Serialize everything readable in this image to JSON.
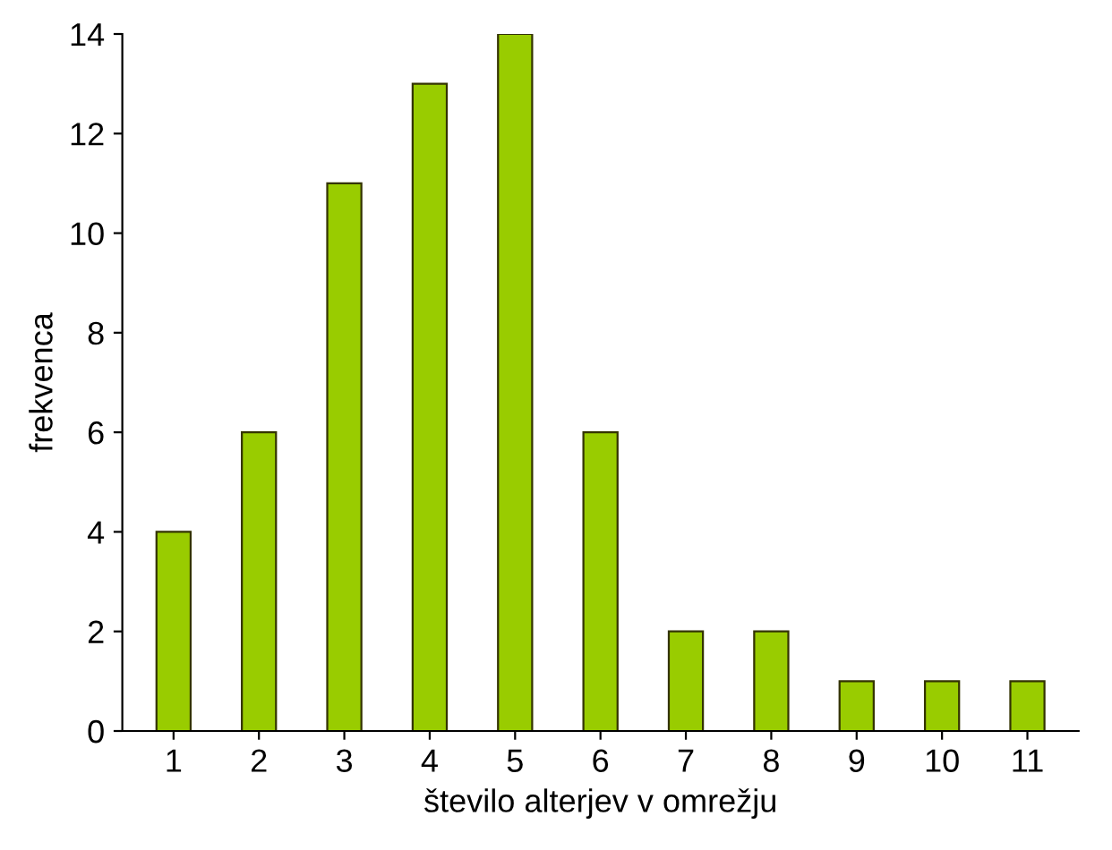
{
  "chart_data": {
    "type": "bar",
    "xlabel": "število alterjev v omrežju",
    "ylabel": "frekvenca",
    "categories": [
      "1",
      "2",
      "3",
      "4",
      "5",
      "6",
      "7",
      "8",
      "9",
      "10",
      "11"
    ],
    "values": [
      4,
      6,
      11,
      13,
      14,
      6,
      2,
      2,
      1,
      1,
      1
    ],
    "color": "#99cc00",
    "ylim": [
      0,
      14
    ],
    "yticks": [
      0,
      2,
      4,
      6,
      8,
      10,
      12,
      14
    ],
    "grid": false,
    "legend": false
  }
}
